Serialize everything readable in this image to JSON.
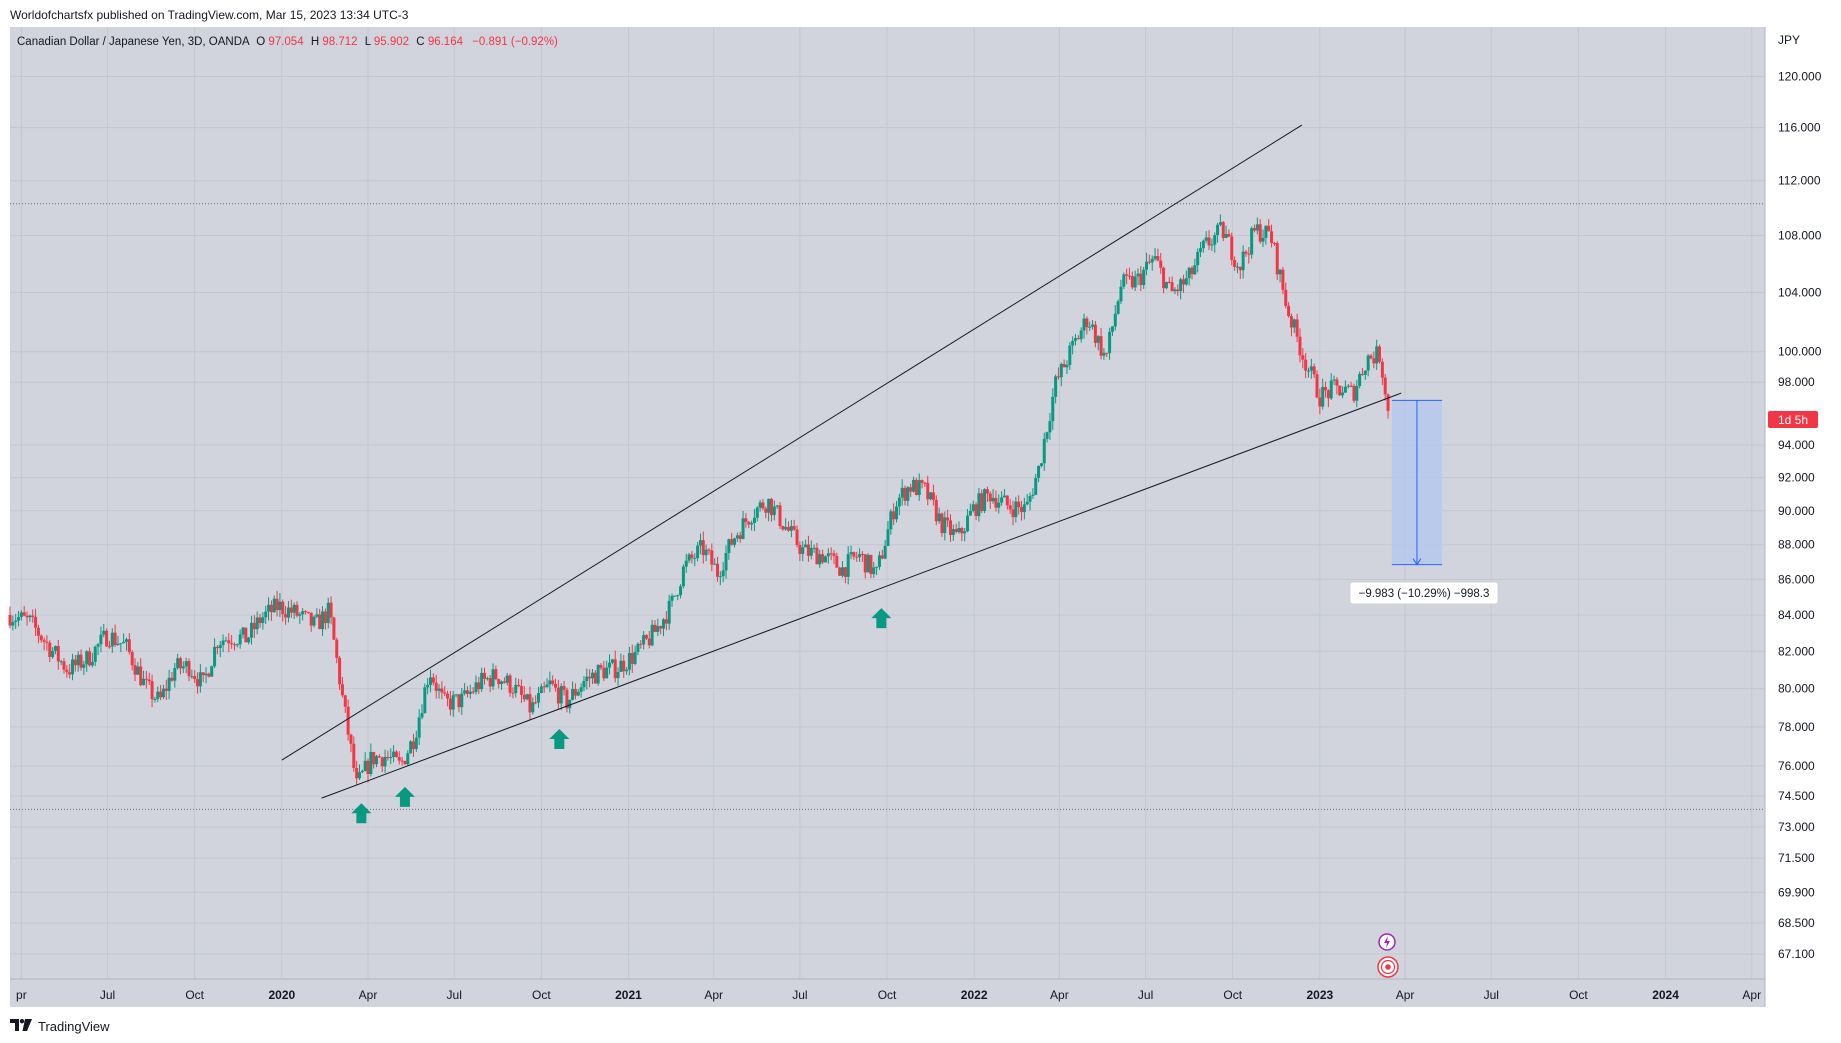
{
  "publish_line": "Worldofchartsfx published on TradingView.com, Mar 15, 2023 13:34 UTC-3",
  "footer_brand": "TradingView",
  "header": {
    "symbol": "Canadian Dollar / Japanese Yen, 3D, OANDA",
    "o_label": "O",
    "o_value": "97.054",
    "h_label": "H",
    "h_value": "98.712",
    "l_label": "L",
    "l_value": "95.902",
    "c_label": "C",
    "c_value": "96.164",
    "change": "−0.891 (−0.92%)"
  },
  "currency_label": "JPY",
  "countdown_label": "1d 5h",
  "measure_label": "−9.983 (−10.29%) −998.3",
  "colors": {
    "background": "#d1d4dc",
    "up": "#089981",
    "down": "#f23645",
    "trendline": "#131722",
    "measure_fill": "#b2c7ef",
    "measure_stroke": "#2962ff",
    "arrow": "#089981"
  },
  "chart_data": {
    "type": "candlestick",
    "symbol": "CADJPY",
    "timeframe": "3D",
    "x_range": [
      "2019-03-20",
      "2024-04-15"
    ],
    "y_range": [
      66.0,
      124.0
    ],
    "y_scale": "log",
    "y_ticks": [
      "120.000",
      "116.000",
      "112.000",
      "108.000",
      "104.000",
      "100.000",
      "98.000",
      "94.000",
      "92.000",
      "90.000",
      "88.000",
      "86.000",
      "84.000",
      "82.000",
      "80.000",
      "78.000",
      "76.000",
      "74.500",
      "73.000",
      "71.500",
      "69.900",
      "68.500",
      "67.100"
    ],
    "x_ticks": [
      {
        "date": "2019-04-01",
        "label": "pr",
        "bold": false
      },
      {
        "date": "2019-07-01",
        "label": "Jul",
        "bold": false
      },
      {
        "date": "2019-10-01",
        "label": "Oct",
        "bold": false
      },
      {
        "date": "2020-01-01",
        "label": "2020",
        "bold": true
      },
      {
        "date": "2020-04-01",
        "label": "Apr",
        "bold": false
      },
      {
        "date": "2020-07-01",
        "label": "Jul",
        "bold": false
      },
      {
        "date": "2020-10-01",
        "label": "Oct",
        "bold": false
      },
      {
        "date": "2021-01-01",
        "label": "2021",
        "bold": true
      },
      {
        "date": "2021-04-01",
        "label": "Apr",
        "bold": false
      },
      {
        "date": "2021-07-01",
        "label": "Jul",
        "bold": false
      },
      {
        "date": "2021-10-01",
        "label": "Oct",
        "bold": false
      },
      {
        "date": "2022-01-01",
        "label": "2022",
        "bold": true
      },
      {
        "date": "2022-04-01",
        "label": "Apr",
        "bold": false
      },
      {
        "date": "2022-07-01",
        "label": "Jul",
        "bold": false
      },
      {
        "date": "2022-10-01",
        "label": "Oct",
        "bold": false
      },
      {
        "date": "2023-01-01",
        "label": "2023",
        "bold": true
      },
      {
        "date": "2023-04-01",
        "label": "Apr",
        "bold": false
      },
      {
        "date": "2023-07-01",
        "label": "Jul",
        "bold": false
      },
      {
        "date": "2023-10-01",
        "label": "Oct",
        "bold": false
      },
      {
        "date": "2024-01-01",
        "label": "2024",
        "bold": true
      },
      {
        "date": "2024-04-01",
        "label": "Apr",
        "bold": false
      }
    ],
    "close_path": [
      [
        "2019-03-20",
        84.0
      ],
      [
        "2019-04-10",
        83.6
      ],
      [
        "2019-05-01",
        82.2
      ],
      [
        "2019-05-20",
        81.0
      ],
      [
        "2019-06-10",
        81.6
      ],
      [
        "2019-07-01",
        82.9
      ],
      [
        "2019-07-20",
        82.3
      ],
      [
        "2019-08-10",
        80.1
      ],
      [
        "2019-08-25",
        79.3
      ],
      [
        "2019-09-10",
        81.1
      ],
      [
        "2019-09-25",
        81.2
      ],
      [
        "2019-10-10",
        80.2
      ],
      [
        "2019-10-25",
        82.6
      ],
      [
        "2019-11-10",
        82.8
      ],
      [
        "2019-11-25",
        82.7
      ],
      [
        "2019-12-10",
        83.8
      ],
      [
        "2019-12-28",
        84.5
      ],
      [
        "2020-01-15",
        84.1
      ],
      [
        "2020-02-05",
        83.4
      ],
      [
        "2020-02-20",
        84.2
      ],
      [
        "2020-03-05",
        79.5
      ],
      [
        "2020-03-20",
        75.0
      ],
      [
        "2020-04-05",
        76.4
      ],
      [
        "2020-04-20",
        76.5
      ],
      [
        "2020-05-05",
        76.0
      ],
      [
        "2020-05-20",
        77.5
      ],
      [
        "2020-06-05",
        81.0
      ],
      [
        "2020-06-20",
        79.2
      ],
      [
        "2020-07-10",
        79.4
      ],
      [
        "2020-07-28",
        80.3
      ],
      [
        "2020-08-15",
        80.7
      ],
      [
        "2020-09-01",
        80.1
      ],
      [
        "2020-09-20",
        78.9
      ],
      [
        "2020-10-10",
        80.2
      ],
      [
        "2020-10-28",
        79.3
      ],
      [
        "2020-11-15",
        80.4
      ],
      [
        "2020-12-01",
        80.9
      ],
      [
        "2020-12-20",
        81.1
      ],
      [
        "2021-01-10",
        81.9
      ],
      [
        "2021-01-28",
        83.0
      ],
      [
        "2021-02-15",
        84.5
      ],
      [
        "2021-03-01",
        86.7
      ],
      [
        "2021-03-20",
        87.8
      ],
      [
        "2021-04-05",
        86.4
      ],
      [
        "2021-04-22",
        88.4
      ],
      [
        "2021-05-10",
        89.8
      ],
      [
        "2021-05-28",
        90.6
      ],
      [
        "2021-06-15",
        89.1
      ],
      [
        "2021-07-05",
        87.6
      ],
      [
        "2021-07-25",
        87.4
      ],
      [
        "2021-08-15",
        86.6
      ],
      [
        "2021-09-01",
        87.4
      ],
      [
        "2021-09-20",
        86.3
      ],
      [
        "2021-10-10",
        90.5
      ],
      [
        "2021-10-25",
        91.5
      ],
      [
        "2021-11-10",
        91.2
      ],
      [
        "2021-11-28",
        89.2
      ],
      [
        "2021-12-15",
        88.4
      ],
      [
        "2022-01-01",
        90.2
      ],
      [
        "2022-01-18",
        91.0
      ],
      [
        "2022-02-05",
        90.3
      ],
      [
        "2022-02-25",
        90.1
      ],
      [
        "2022-03-10",
        92.5
      ],
      [
        "2022-03-28",
        97.9
      ],
      [
        "2022-04-15",
        100.3
      ],
      [
        "2022-05-01",
        102.3
      ],
      [
        "2022-05-20",
        99.5
      ],
      [
        "2022-06-05",
        104.5
      ],
      [
        "2022-06-22",
        104.8
      ],
      [
        "2022-07-10",
        106.4
      ],
      [
        "2022-07-28",
        103.9
      ],
      [
        "2022-08-15",
        104.9
      ],
      [
        "2022-09-01",
        107.2
      ],
      [
        "2022-09-20",
        108.4
      ],
      [
        "2022-10-08",
        105.8
      ],
      [
        "2022-10-25",
        108.4
      ],
      [
        "2022-11-10",
        108.0
      ],
      [
        "2022-11-28",
        102.8
      ],
      [
        "2022-12-15",
        99.6
      ],
      [
        "2023-01-01",
        97.1
      ],
      [
        "2023-01-18",
        97.6
      ],
      [
        "2023-02-05",
        97.3
      ],
      [
        "2023-02-20",
        99.6
      ],
      [
        "2023-03-05",
        99.8
      ],
      [
        "2023-03-15",
        96.16
      ]
    ]
  },
  "drawings": {
    "upper_trendline": [
      [
        "2020-01-01",
        76.3
      ],
      [
        "2022-12-13",
        116.2
      ]
    ],
    "lower_trendline": [
      [
        "2020-02-12",
        74.4
      ],
      [
        "2023-03-28",
        97.3
      ]
    ],
    "resistance_level": 110.3,
    "support_level": 73.85,
    "support_arrows": [
      "2020-03-25",
      "2020-05-10",
      "2020-10-20",
      "2021-09-25"
    ],
    "measure": {
      "start": "2023-03-18",
      "end": "2023-05-10",
      "from": 96.83,
      "to": 86.85
    }
  }
}
